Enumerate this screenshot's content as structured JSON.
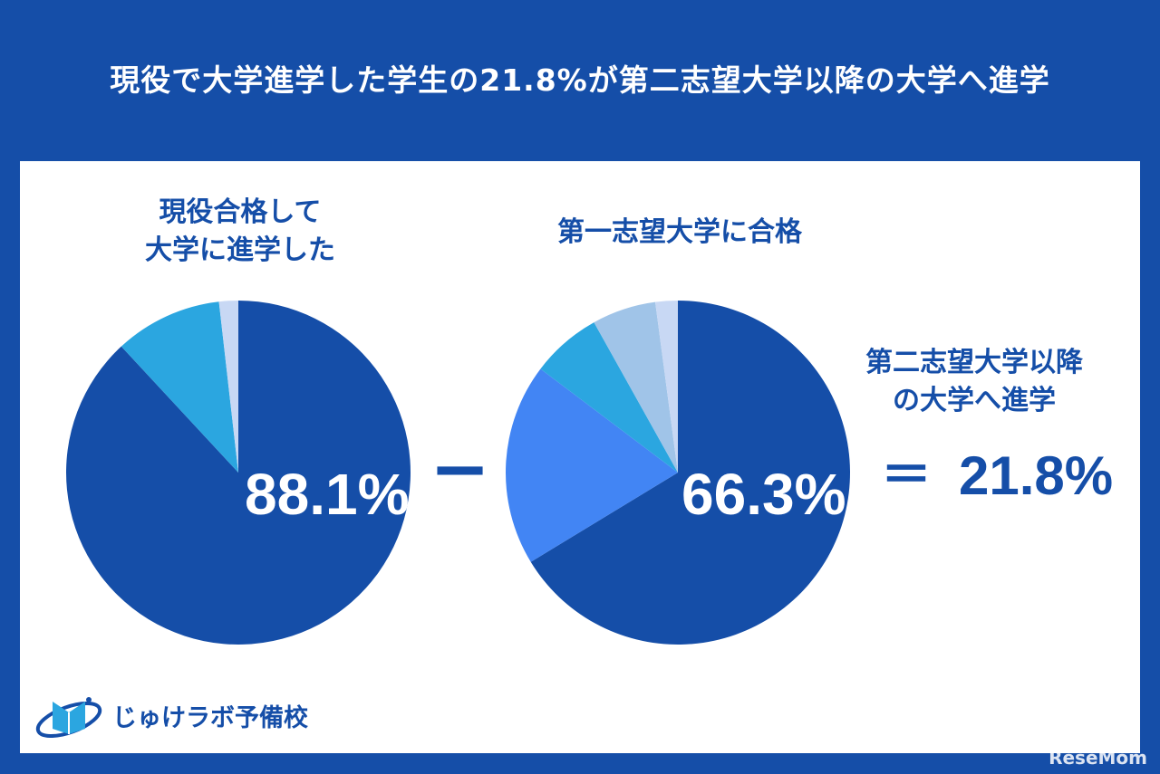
{
  "title": "現役で大学進学した学生の21.8%が第二志望大学以降の大学へ進学",
  "colors": {
    "background": "#154ea8",
    "dark": "#154ea8",
    "medium": "#4285f4",
    "light": "#2ba6e0",
    "pale": "#a0c4e8",
    "palest": "#c8d8f4"
  },
  "chart_data": [
    {
      "type": "pie",
      "title_lines": [
        "現役合格して",
        "大学に進学した"
      ],
      "label": "88.1%",
      "slices": [
        {
          "value": 88.1,
          "color": "#154ea8"
        },
        {
          "value": 10.1,
          "color": "#2ba6e0"
        },
        {
          "value": 1.8,
          "color": "#c8d8f4"
        }
      ]
    },
    {
      "type": "pie",
      "title_lines": [
        "第一志望大学に合格"
      ],
      "label": "66.3%",
      "slices": [
        {
          "value": 66.3,
          "color": "#154ea8"
        },
        {
          "value": 19.0,
          "color": "#4285f4"
        },
        {
          "value": 6.6,
          "color": "#2ba6e0"
        },
        {
          "value": 6.0,
          "color": "#a0c4e8"
        },
        {
          "value": 2.1,
          "color": "#c8d8f4"
        }
      ]
    }
  ],
  "operator_minus": "−",
  "operator_equals": "＝",
  "result_label_lines": [
    "第二志望大学以降",
    "の大学へ進学"
  ],
  "result_value": "21.8%",
  "logo_text": "じゅけラボ予備校",
  "watermark": "ReseMom"
}
